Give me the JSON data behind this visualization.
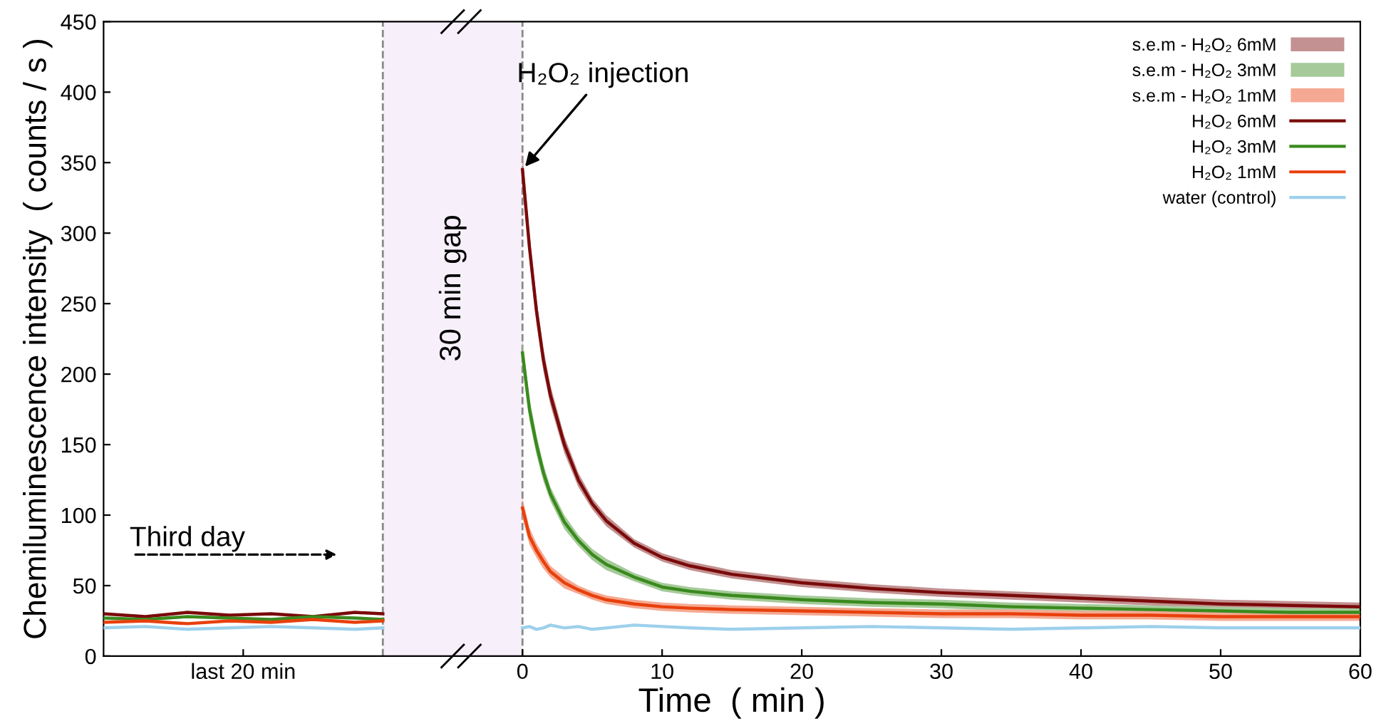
{
  "chart_data": {
    "type": "line",
    "xlabel": "Time  ( min )",
    "ylabel": "Chemiluminescence intensity  ( counts / s )",
    "xlim": [
      -30,
      60
    ],
    "xticks": [
      {
        "value": -20,
        "label": "last 20 min"
      },
      0,
      10,
      20,
      30,
      40,
      50,
      60
    ],
    "ylim": [
      0,
      450
    ],
    "yticks": [
      0,
      50,
      100,
      150,
      200,
      250,
      300,
      350,
      400,
      450
    ],
    "grid": false,
    "legend": "top right",
    "line_style": "solid",
    "marker": "none",
    "bands": [
      {
        "axis": "x",
        "from": -10,
        "to": 0,
        "label": "30 min gap",
        "color": "#f7f0fa"
      }
    ],
    "ref_lines": [
      {
        "axis": "x",
        "value": -10,
        "line_style": "dashed",
        "color": "#888888"
      },
      {
        "axis": "x",
        "value": 0,
        "line_style": "dashed",
        "color": "#888888"
      }
    ],
    "annotations": [
      {
        "text": "H₂O₂ injection",
        "x": 0,
        "y": 345
      },
      "Third day",
      "s.e.m - H₂O₂ 6mM",
      "s.e.m - H₂O₂ 3mM",
      "s.e.m - H₂O₂ 1mM"
    ],
    "series": [
      {
        "name": "H₂O₂ 6mM",
        "color": "#7a0a0a",
        "x": [
          -30,
          -27,
          -24,
          -21,
          -18,
          -15,
          -12,
          -10,
          -5,
          0,
          0.5,
          1,
          1.5,
          2,
          3,
          4,
          5,
          6,
          8,
          10,
          12,
          15,
          20,
          25,
          30,
          35,
          40,
          45,
          50,
          55,
          60
        ],
        "values": [
          30,
          28,
          31,
          29,
          30,
          28,
          31,
          30,
          null,
          345,
          290,
          245,
          210,
          185,
          150,
          125,
          108,
          96,
          80,
          70,
          64,
          58,
          52,
          48,
          45,
          43,
          41,
          39,
          37,
          36,
          35
        ],
        "lower": [
          null,
          null,
          null,
          null,
          null,
          null,
          null,
          null,
          null,
          333,
          280,
          236,
          202,
          178,
          144,
          120,
          104,
          92,
          77,
          67,
          61,
          55,
          49,
          45,
          42,
          40,
          38,
          36,
          34,
          33,
          32
        ],
        "upper": [
          null,
          null,
          null,
          null,
          null,
          null,
          null,
          null,
          null,
          357,
          300,
          254,
          218,
          192,
          156,
          130,
          112,
          100,
          83,
          73,
          67,
          61,
          55,
          51,
          48,
          46,
          44,
          42,
          40,
          39,
          38
        ]
      },
      {
        "name": "H₂O₂ 3mM",
        "color": "#3a8a1e",
        "x": [
          -30,
          -27,
          -24,
          -21,
          -18,
          -15,
          -12,
          -10,
          -5,
          0,
          0.5,
          1,
          1.5,
          2,
          3,
          4,
          5,
          6,
          8,
          10,
          12,
          15,
          20,
          25,
          30,
          35,
          40,
          45,
          50,
          55,
          60
        ],
        "values": [
          27,
          26,
          28,
          27,
          26,
          28,
          27,
          26,
          null,
          215,
          175,
          150,
          130,
          115,
          95,
          82,
          72,
          65,
          56,
          49,
          46,
          43,
          40,
          38,
          37,
          35,
          34,
          33,
          32,
          31,
          31
        ],
        "lower": [
          null,
          null,
          null,
          null,
          null,
          null,
          null,
          null,
          null,
          205,
          167,
          143,
          124,
          110,
          90,
          78,
          68,
          61,
          53,
          46,
          43,
          40,
          37,
          35,
          34,
          32,
          31,
          30,
          29,
          28,
          28
        ],
        "upper": [
          null,
          null,
          null,
          null,
          null,
          null,
          null,
          null,
          null,
          225,
          183,
          157,
          136,
          120,
          100,
          86,
          76,
          69,
          59,
          52,
          49,
          46,
          43,
          41,
          40,
          38,
          37,
          36,
          35,
          34,
          34
        ]
      },
      {
        "name": "H₂O₂ 1mM",
        "color": "#e8400c",
        "x": [
          -30,
          -27,
          -24,
          -21,
          -18,
          -15,
          -12,
          -10,
          -5,
          0,
          0.5,
          1,
          1.5,
          2,
          3,
          4,
          5,
          6,
          8,
          10,
          12,
          15,
          20,
          25,
          30,
          35,
          40,
          45,
          50,
          55,
          60
        ],
        "values": [
          24,
          25,
          23,
          25,
          24,
          26,
          24,
          25,
          null,
          105,
          85,
          75,
          67,
          60,
          52,
          47,
          43,
          40,
          37,
          35,
          34,
          33,
          32,
          31,
          30,
          30,
          29,
          29,
          28,
          28,
          28
        ],
        "lower": [
          null,
          null,
          null,
          null,
          null,
          null,
          null,
          null,
          null,
          98,
          79,
          70,
          62,
          56,
          48,
          44,
          40,
          37,
          34,
          32,
          31,
          30,
          29,
          28,
          27,
          27,
          26,
          26,
          25,
          25,
          25
        ],
        "upper": [
          null,
          null,
          null,
          null,
          null,
          null,
          null,
          null,
          null,
          112,
          91,
          80,
          72,
          64,
          56,
          50,
          46,
          43,
          40,
          38,
          37,
          36,
          35,
          34,
          33,
          33,
          32,
          32,
          31,
          31,
          31
        ]
      },
      {
        "name": "water (control)",
        "color": "#9dd0ec",
        "x": [
          -30,
          -27,
          -24,
          -21,
          -18,
          -15,
          -12,
          -10,
          -5,
          0,
          0.5,
          1,
          1.5,
          2,
          3,
          4,
          5,
          6,
          8,
          10,
          12,
          15,
          20,
          25,
          30,
          35,
          40,
          45,
          50,
          55,
          60
        ],
        "values": [
          20,
          21,
          19,
          20,
          21,
          20,
          19,
          20,
          null,
          20,
          21,
          19,
          20,
          22,
          20,
          21,
          19,
          20,
          22,
          21,
          20,
          19,
          20,
          21,
          20,
          19,
          20,
          21,
          20,
          20,
          20
        ]
      }
    ]
  }
}
